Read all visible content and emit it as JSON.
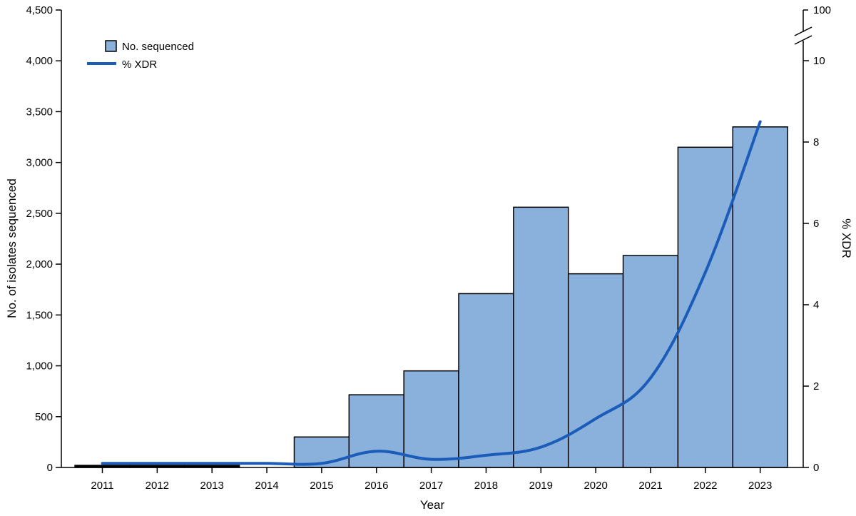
{
  "chart_data": {
    "type": "bar",
    "title": "",
    "xlabel": "Year",
    "ylabel": "No. of isolates sequenced",
    "y2label": "% XDR",
    "categories": [
      "2011",
      "2012",
      "2013",
      "2014",
      "2015",
      "2016",
      "2017",
      "2018",
      "2019",
      "2020",
      "2021",
      "2022",
      "2023"
    ],
    "ylim": [
      0,
      4500
    ],
    "yticks": [
      0,
      500,
      1000,
      1500,
      2000,
      2500,
      3000,
      3500,
      4000,
      4500
    ],
    "ytick_labels": [
      "0",
      "500",
      "1,000",
      "1,500",
      "2,000",
      "2,500",
      "3,000",
      "3,500",
      "4,000",
      "4,500"
    ],
    "y2lim": [
      0,
      10
    ],
    "y2ticks": [
      0,
      2,
      4,
      6,
      8,
      10
    ],
    "y2ticks_labels": [
      "0",
      "2",
      "4",
      "6",
      "8",
      "10"
    ],
    "y2break_label": "100",
    "legend_position": "top-left",
    "grid": false,
    "series": [
      {
        "name": "No. sequenced",
        "kind": "bar",
        "axis": "left",
        "color": "#8ab0dc",
        "values": [
          20,
          20,
          20,
          0,
          300,
          715,
          950,
          1710,
          2560,
          1905,
          2085,
          3150,
          3350
        ]
      },
      {
        "name": "% XDR",
        "kind": "line",
        "axis": "right",
        "color": "#1a5cb8",
        "values": [
          0.1,
          0.1,
          0.1,
          0.1,
          0.1,
          0.4,
          0.2,
          0.3,
          0.5,
          1.2,
          2.2,
          4.8,
          8.5
        ]
      }
    ]
  }
}
